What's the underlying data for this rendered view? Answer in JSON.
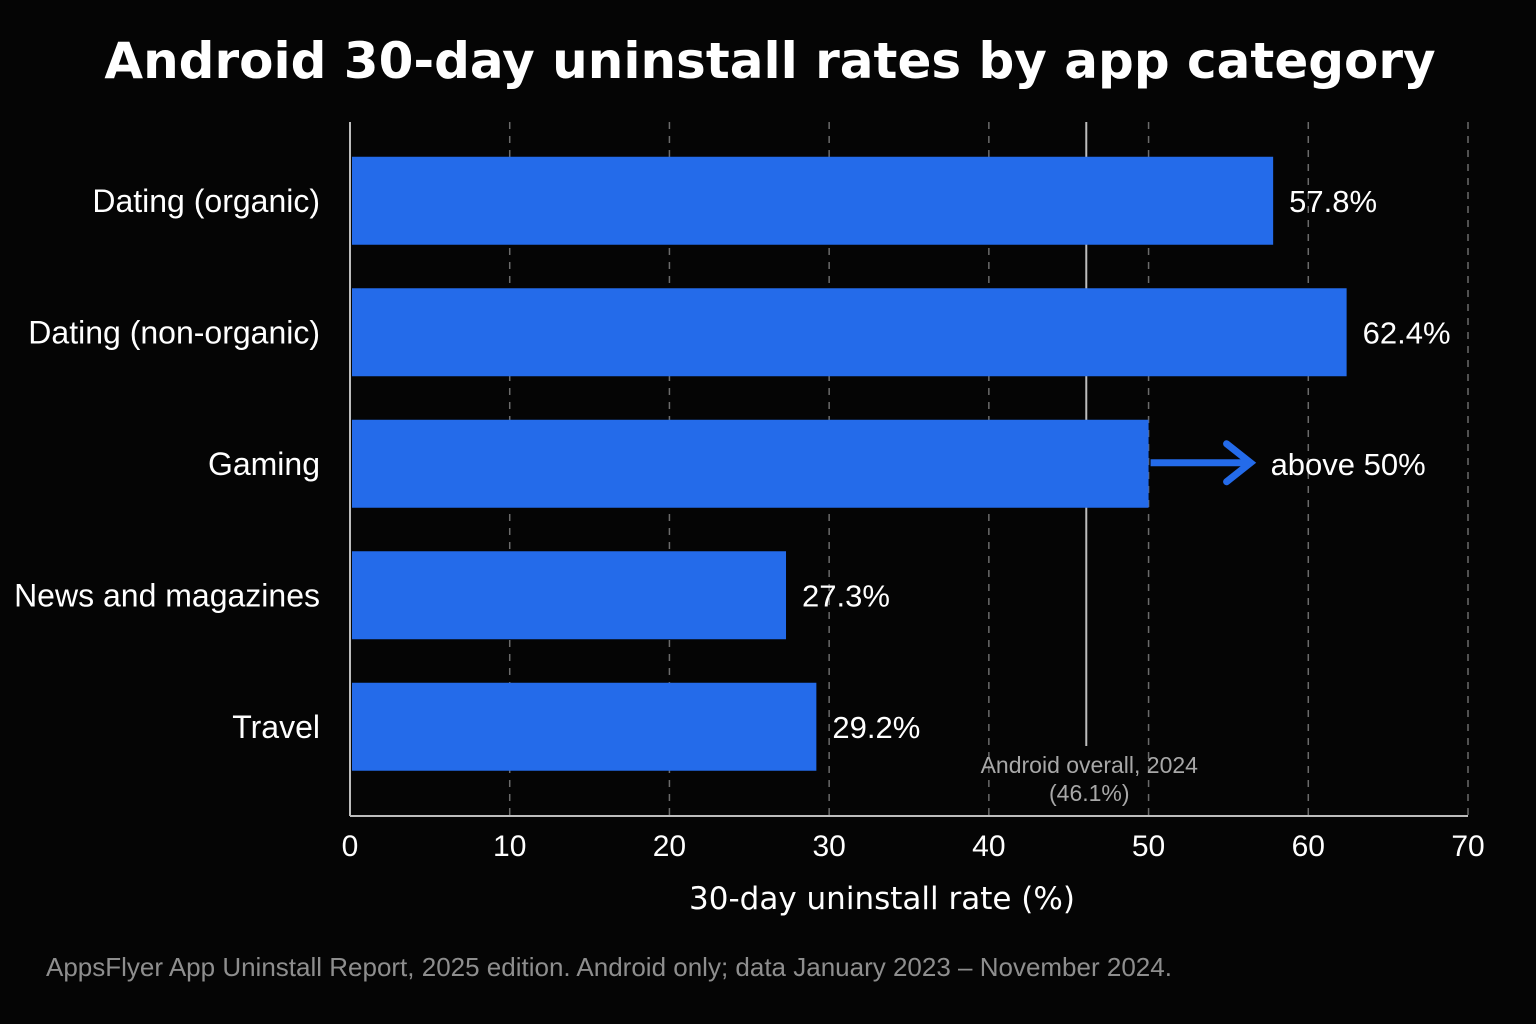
{
  "chart_data": {
    "type": "bar",
    "orientation": "horizontal",
    "title": "Android 30-day uninstall rates by app category",
    "xlabel": "30-day uninstall rate (%)",
    "ylabel": "",
    "xlim": [
      0,
      70
    ],
    "x_ticks": [
      0,
      10,
      20,
      30,
      40,
      50,
      60,
      70
    ],
    "grid": "vertical dashed",
    "categories": [
      "Dating (organic)",
      "Dating (non-organic)",
      "Gaming",
      "News and magazines",
      "Travel"
    ],
    "values": [
      57.8,
      62.4,
      50,
      27.3,
      29.2
    ],
    "value_labels": [
      "57.8%",
      "62.4%",
      "above 50%",
      "27.3%",
      "29.2%"
    ],
    "bar_color": "#246BEA",
    "reference_line": {
      "value": 46.1,
      "label_line1": "Android overall, 2024",
      "label_line2": "(46.1%)",
      "color": "#bdbdbd"
    },
    "annotations": [
      {
        "category": "Gaming",
        "type": "arrow",
        "text": "above 50%",
        "color": "#246BEA"
      }
    ],
    "source": "AppsFlyer App Uninstall Report, 2025 edition. Android only; data January 2023 – November 2024."
  }
}
